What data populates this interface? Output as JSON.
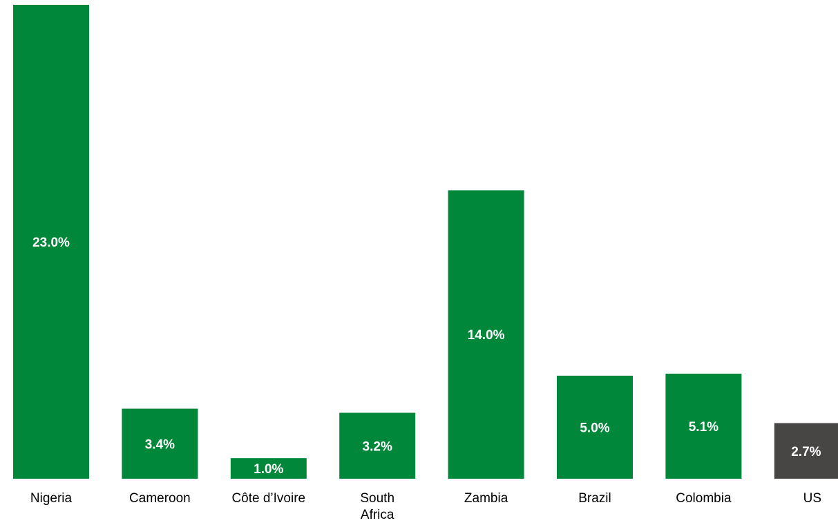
{
  "chart_data": {
    "type": "bar",
    "categories": [
      "Nigeria",
      "Cameroon",
      "Côte d’Ivoire",
      "South Africa",
      "Zambia",
      "Brazil",
      "Colombia",
      "US"
    ],
    "values": [
      23.0,
      3.4,
      1.0,
      3.2,
      14.0,
      5.0,
      5.1,
      2.7
    ],
    "value_labels": [
      "23.0%",
      "3.4%",
      "1.0%",
      "3.2%",
      "14.0%",
      "5.0%",
      "5.1%",
      "2.7%"
    ],
    "colors": [
      "#00873a",
      "#00873a",
      "#00873a",
      "#00873a",
      "#00873a",
      "#00873a",
      "#00873a",
      "#484545"
    ],
    "grid": false
  }
}
